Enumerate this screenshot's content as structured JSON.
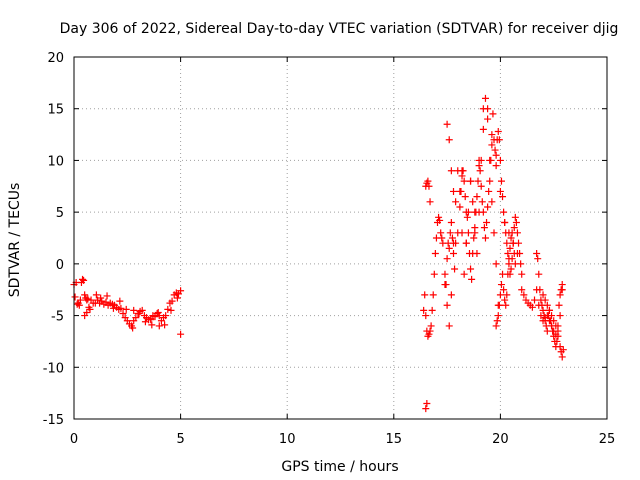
{
  "chart_data": {
    "type": "scatter",
    "title": "Day 306 of 2022, Sidereal Day-to-day VTEC variation (SDTVAR) for receiver djig",
    "xlabel": "GPS time / hours",
    "ylabel": "SDTVAR / TECUs",
    "xlim": [
      0,
      25
    ],
    "ylim": [
      -15,
      20
    ],
    "x_ticks": [
      0,
      5,
      10,
      15,
      20,
      25
    ],
    "y_ticks": [
      -15,
      -10,
      -5,
      0,
      5,
      10,
      15,
      20
    ],
    "x_tick_labels": [
      "0",
      "5",
      "10",
      "15",
      "20",
      "25"
    ],
    "y_tick_labels": [
      "-15",
      "-10",
      "-5",
      "0",
      "5",
      "10",
      "15",
      "20"
    ],
    "grid": true,
    "marker": "+",
    "colors": {
      "series": "#ff0000",
      "grid": "#a0a0a0",
      "axis": "#000000"
    },
    "series": [
      {
        "name": "SDTVAR",
        "x": [
          0.0,
          0.1,
          0.2,
          0.3,
          0.4,
          0.5,
          0.6,
          0.7,
          0.8,
          0.9,
          1.0,
          1.1,
          1.2,
          1.3,
          1.4,
          1.5,
          1.6,
          1.7,
          1.8,
          1.9,
          2.0,
          2.1,
          2.2,
          2.3,
          2.4,
          2.5,
          2.6,
          2.7,
          2.8,
          2.9,
          3.0,
          3.1,
          3.2,
          3.3,
          3.4,
          3.5,
          3.6,
          3.7,
          3.8,
          3.9,
          4.0,
          4.1,
          4.2,
          4.3,
          4.4,
          4.5,
          4.6,
          4.7,
          4.8,
          4.9,
          5.0,
          0.05,
          0.15,
          0.25,
          0.35,
          0.45,
          0.55,
          0.65,
          0.75,
          1.05,
          1.25,
          1.55,
          1.85,
          2.15,
          2.45,
          2.75,
          3.05,
          3.35,
          3.65,
          3.95,
          4.25,
          4.55,
          4.85,
          0.5,
          0.6,
          2.8,
          3.6,
          4.0,
          5.0,
          16.4,
          16.45,
          16.5,
          16.55,
          16.6,
          16.65,
          16.7,
          16.75,
          16.8,
          16.85,
          16.9,
          16.95,
          17.0,
          17.05,
          17.1,
          17.15,
          17.2,
          17.25,
          17.3,
          16.5,
          16.55,
          16.6,
          16.65,
          16.7,
          16.5,
          16.55,
          17.4,
          17.5,
          17.6,
          17.7,
          17.8,
          17.9,
          18.0,
          18.1,
          18.2,
          18.3,
          18.4,
          18.5,
          18.6,
          18.7,
          18.8,
          18.9,
          19.0,
          19.1,
          19.2,
          19.3,
          19.4,
          19.5,
          19.6,
          19.7,
          19.8,
          19.9,
          17.5,
          17.6,
          17.7,
          17.8,
          18.0,
          18.2,
          18.4,
          18.6,
          18.8,
          19.0,
          19.2,
          19.4,
          19.6,
          19.8,
          20.0,
          20.2,
          20.4,
          20.6,
          20.8,
          17.4,
          17.45,
          17.5,
          17.55,
          17.6,
          17.65,
          17.7,
          17.75,
          17.8,
          17.85,
          17.9,
          18.1,
          18.15,
          18.2,
          18.25,
          18.3,
          18.35,
          18.4,
          18.45,
          18.5,
          18.55,
          18.6,
          18.65,
          18.7,
          18.75,
          18.8,
          18.85,
          18.9,
          18.95,
          19.0,
          19.05,
          19.1,
          19.15,
          19.2,
          19.25,
          19.3,
          19.35,
          19.4,
          19.45,
          19.5,
          19.55,
          19.6,
          19.65,
          19.7,
          19.75,
          19.8,
          19.85,
          19.9,
          19.95,
          20.0,
          20.05,
          20.1,
          20.15,
          20.2,
          20.25,
          20.3,
          20.35,
          20.4,
          20.45,
          20.5,
          20.55,
          20.6,
          20.65,
          20.7,
          20.75,
          20.8,
          20.85,
          20.9,
          20.95,
          21.0,
          19.8,
          19.85,
          19.9,
          19.95,
          20.0,
          20.05,
          20.1,
          20.15,
          20.2,
          20.25,
          20.3,
          20.35,
          20.4,
          20.45,
          20.5,
          20.55,
          20.6,
          20.65,
          20.7,
          21.0,
          21.1,
          21.2,
          21.3,
          21.4,
          21.5,
          21.6,
          21.7,
          21.8,
          21.9,
          22.0,
          22.1,
          22.2,
          22.3,
          22.4,
          22.5,
          22.6,
          22.7,
          22.8,
          22.9,
          21.7,
          21.75,
          21.8,
          21.85,
          21.9,
          21.95,
          22.0,
          22.05,
          22.1,
          22.15,
          22.2,
          22.25,
          22.3,
          22.35,
          22.4,
          22.45,
          22.5,
          22.55,
          22.6,
          22.65,
          22.7,
          22.75,
          22.8,
          22.85,
          22.9,
          22.0,
          22.1,
          22.2,
          22.3,
          22.4,
          22.5,
          22.6,
          22.7,
          22.8,
          22.85,
          22.9,
          22.95
        ],
        "y": [
          -2.0,
          -1.8,
          -3.8,
          -3.5,
          -1.5,
          -3.0,
          -3.5,
          -4.2,
          -3.5,
          -3.8,
          -3.8,
          -3.5,
          -3.8,
          -3.6,
          -3.9,
          -3.7,
          -4.0,
          -3.8,
          -3.9,
          -4.0,
          -4.2,
          -4.4,
          -4.3,
          -4.8,
          -5.2,
          -5.5,
          -5.8,
          -6.0,
          -5.5,
          -5.2,
          -4.8,
          -4.6,
          -4.5,
          -5.0,
          -5.2,
          -5.4,
          -5.3,
          -5.0,
          -5.1,
          -4.8,
          -5.0,
          -5.5,
          -5.2,
          -5.0,
          -4.4,
          -3.8,
          -3.6,
          -3.0,
          -2.8,
          -2.9,
          -2.6,
          -3.2,
          -3.9,
          -4.0,
          -1.8,
          -1.6,
          -3.3,
          -3.4,
          -4.4,
          -3.0,
          -3.3,
          -3.1,
          -4.3,
          -3.6,
          -4.4,
          -6.2,
          -4.8,
          -5.6,
          -5.9,
          -4.7,
          -5.9,
          -4.5,
          -3.3,
          -5.0,
          -4.7,
          -4.5,
          -5.4,
          -6.0,
          -6.8,
          -4.5,
          -3.0,
          -5.0,
          -6.5,
          -7.0,
          -6.8,
          -6.5,
          -6.0,
          -4.5,
          -3.0,
          -1.0,
          1.0,
          2.5,
          4.0,
          4.5,
          4.2,
          3.0,
          2.5,
          2.0,
          7.5,
          7.8,
          8.0,
          7.5,
          6.0,
          -14.0,
          -13.5,
          -2.0,
          -4.0,
          -6.0,
          -3.0,
          2.0,
          6.0,
          9.0,
          7.0,
          3.0,
          -1.0,
          2.0,
          5.0,
          8.0,
          6.0,
          3.0,
          1.0,
          5.0,
          10.0,
          13.0,
          16.0,
          15.0,
          10.0,
          6.0,
          3.0,
          0.0,
          -4.0,
          13.5,
          12.0,
          9.0,
          7.0,
          3.0,
          9.0,
          2.0,
          8.0,
          5.0,
          10.0,
          15.0,
          14.0,
          11.5,
          9.5,
          7.0,
          4.0,
          3.0,
          2.0,
          1.0,
          -1.0,
          -2.0,
          0.5,
          2.0,
          1.5,
          3.0,
          4.0,
          2.5,
          1.0,
          -0.5,
          2.0,
          5.5,
          7.0,
          8.5,
          9.0,
          8.0,
          6.5,
          5.0,
          4.5,
          3.0,
          1.0,
          -0.5,
          -1.5,
          1.0,
          2.5,
          3.5,
          5.0,
          6.5,
          8.0,
          9.5,
          9.0,
          7.5,
          6.0,
          5.0,
          3.5,
          2.5,
          4.0,
          5.5,
          7.0,
          8.0,
          10.0,
          12.5,
          14.5,
          12.0,
          11.0,
          10.5,
          12.0,
          12.8,
          12.0,
          10.0,
          8.0,
          6.5,
          5.0,
          4.0,
          3.0,
          2.0,
          1.0,
          0.0,
          -1.0,
          -0.5,
          0.5,
          2.0,
          3.5,
          4.5,
          4.0,
          3.0,
          2.0,
          1.0,
          0.0,
          -1.0,
          -6.0,
          -5.5,
          -5.0,
          -4.0,
          -3.0,
          -2.0,
          -1.0,
          -2.5,
          -3.5,
          -4.0,
          -3.0,
          -1.0,
          0.5,
          1.5,
          2.5,
          3.0,
          2.0,
          1.0,
          0.0,
          -2.5,
          -3.0,
          -3.5,
          -3.8,
          -4.0,
          -4.2,
          -3.5,
          -2.5,
          -4.0,
          -5.0,
          -5.5,
          -5.2,
          -5.0,
          -5.5,
          -6.0,
          -6.5,
          -6.8,
          -6.5,
          -5.0,
          -2.5,
          1.0,
          0.5,
          -1.0,
          -2.5,
          -3.5,
          -4.0,
          -4.5,
          -5.0,
          -5.5,
          -6.0,
          -6.5,
          -5.0,
          -4.5,
          -5.5,
          -6.0,
          -6.5,
          -7.0,
          -7.5,
          -8.0,
          -7.5,
          -6.0,
          -4.0,
          -3.0,
          -2.5,
          -2.0,
          -3.0,
          -3.5,
          -4.0,
          -4.5,
          -5.0,
          -5.5,
          -6.0,
          -7.0,
          -8.0,
          -8.5,
          -9.0,
          -8.3
        ]
      }
    ]
  }
}
